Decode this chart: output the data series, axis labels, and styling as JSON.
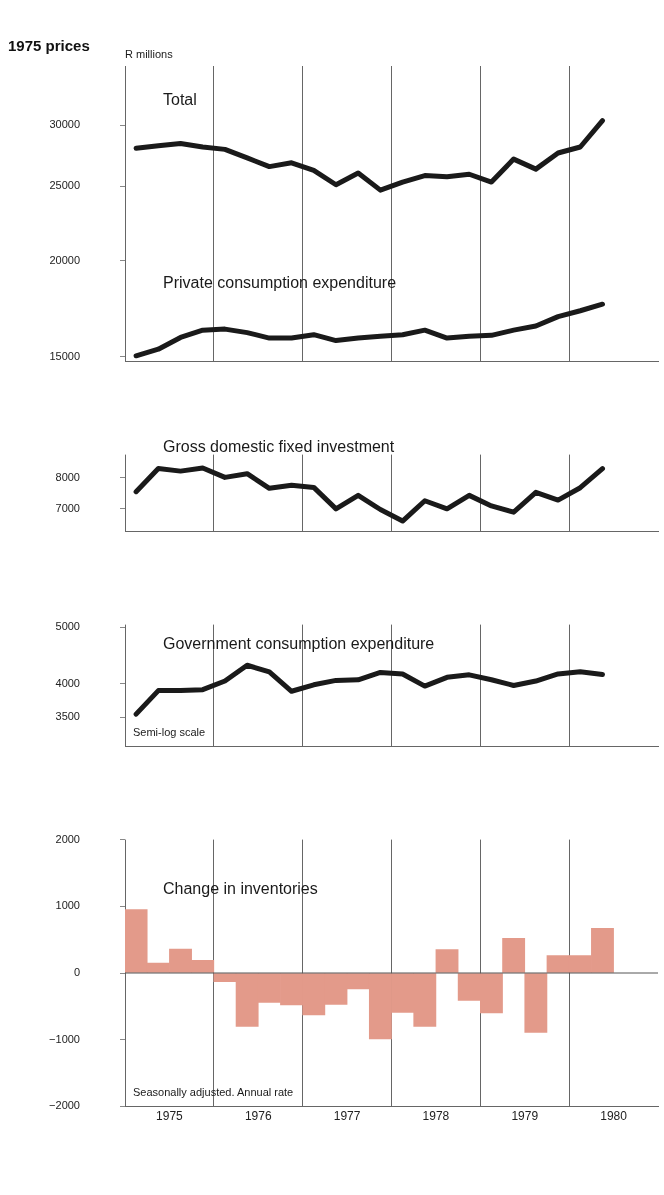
{
  "chart_data": [
    {
      "type": "line",
      "title": "1975 prices",
      "ylabel": "R millions",
      "log": true,
      "grid": "x",
      "tick_labels": "y",
      "x": [
        1975.125,
        1975.375,
        1975.625,
        1975.875,
        1976.125,
        1976.375,
        1976.625,
        1976.875,
        1977.125,
        1977.375,
        1977.625,
        1977.875,
        1978.125,
        1978.375,
        1978.625,
        1978.875,
        1979.125,
        1979.375,
        1979.625,
        1979.875,
        1980.125,
        1980.375
      ],
      "xlim": [
        1975,
        1981
      ],
      "xticks": [
        {
          "value": 1975,
          "label": null
        },
        {
          "value": 1976,
          "label": null
        },
        {
          "value": 1977,
          "label": null
        },
        {
          "value": 1978,
          "label": null
        },
        {
          "value": 1979,
          "label": null
        },
        {
          "value": 1980,
          "label": null
        }
      ],
      "ylim": [
        14800,
        35800
      ],
      "yticks": [
        15000,
        20000,
        25000,
        30000
      ],
      "series": [
        {
          "name": "Total",
          "color": "#1a1a1a",
          "values": [
            28000,
            28200,
            28400,
            28100,
            27900,
            27200,
            26500,
            26800,
            26200,
            25100,
            26000,
            24700,
            25300,
            25800,
            25700,
            25900,
            25300,
            27100,
            26300,
            27600,
            28100,
            30400
          ]
        },
        {
          "name": "Private consumption expenditure",
          "color": "#1a1a1a",
          "values": [
            15050,
            15350,
            15900,
            16250,
            16300,
            16130,
            15870,
            15870,
            16030,
            15750,
            15870,
            15960,
            16030,
            16250,
            15870,
            15960,
            16000,
            16250,
            16450,
            16920,
            17220,
            17560
          ]
        }
      ]
    },
    {
      "type": "line",
      "log": true,
      "grid": "x",
      "tick_labels": "y",
      "x": [
        1975.125,
        1975.375,
        1975.625,
        1975.875,
        1976.125,
        1976.375,
        1976.625,
        1976.875,
        1977.125,
        1977.375,
        1977.625,
        1977.875,
        1978.125,
        1978.375,
        1978.625,
        1978.875,
        1979.125,
        1979.375,
        1979.625,
        1979.875,
        1980.125,
        1980.375
      ],
      "xlim": [
        1975,
        1981
      ],
      "xticks": [
        {
          "value": 1975,
          "label": null
        },
        {
          "value": 1976,
          "label": null
        },
        {
          "value": 1977,
          "label": null
        },
        {
          "value": 1978,
          "label": null
        },
        {
          "value": 1979,
          "label": null
        },
        {
          "value": 1980,
          "label": null
        }
      ],
      "ylim": [
        6350,
        8850
      ],
      "yticks": [
        7000,
        8000
      ],
      "series": [
        {
          "name": "Gross domestic fixed investment",
          "color": "#1a1a1a",
          "values": [
            7540,
            8330,
            8240,
            8350,
            8020,
            8150,
            7650,
            7750,
            7680,
            7000,
            7420,
            6980,
            6640,
            7250,
            7000,
            7420,
            7090,
            6900,
            7520,
            7270,
            7670,
            8330
          ]
        }
      ]
    },
    {
      "type": "line",
      "log": true,
      "grid": "x",
      "tick_labels": "y",
      "annotations": [
        "Semi-log scale"
      ],
      "x": [
        1975.125,
        1975.375,
        1975.625,
        1975.875,
        1976.125,
        1976.375,
        1976.625,
        1976.875,
        1977.125,
        1977.375,
        1977.625,
        1977.875,
        1978.125,
        1978.375,
        1978.625,
        1978.875,
        1979.125,
        1979.375,
        1979.625,
        1979.875,
        1980.125,
        1980.375
      ],
      "xlim": [
        1975,
        1981
      ],
      "xticks": [
        {
          "value": 1975,
          "label": null
        },
        {
          "value": 1976,
          "label": null
        },
        {
          "value": 1977,
          "label": null
        },
        {
          "value": 1978,
          "label": null
        },
        {
          "value": 1979,
          "label": null
        },
        {
          "value": 1980,
          "label": null
        }
      ],
      "ylim": [
        3120,
        5050
      ],
      "yticks": [
        3500,
        4000,
        5000
      ],
      "series": [
        {
          "name": "Government consumption expenditure",
          "color": "#1a1a1a",
          "values": [
            3545,
            3890,
            3890,
            3905,
            4040,
            4300,
            4190,
            3880,
            3980,
            4050,
            4060,
            4180,
            4155,
            3960,
            4100,
            4140,
            4060,
            3970,
            4040,
            4155,
            4190,
            4145
          ]
        }
      ]
    },
    {
      "type": "bar",
      "grid": "x",
      "annotations": [
        "Seasonally adjusted. Annual rate"
      ],
      "x": [
        1975.125,
        1975.375,
        1975.625,
        1975.875,
        1976.125,
        1976.375,
        1976.625,
        1976.875,
        1977.125,
        1977.375,
        1977.625,
        1977.875,
        1978.125,
        1978.375,
        1978.625,
        1978.875,
        1979.125,
        1979.375,
        1979.625,
        1979.875,
        1980.125,
        1980.375
      ],
      "xlim": [
        1975,
        1981
      ],
      "xticks": [
        {
          "value": 1975,
          "label": null
        },
        {
          "value": 1975.5,
          "label": "1975"
        },
        {
          "value": 1976,
          "label": null
        },
        {
          "value": 1976.5,
          "label": "1976"
        },
        {
          "value": 1977,
          "label": null
        },
        {
          "value": 1977.5,
          "label": "1977"
        },
        {
          "value": 1978,
          "label": null
        },
        {
          "value": 1978.5,
          "label": "1978"
        },
        {
          "value": 1979,
          "label": null
        },
        {
          "value": 1979.5,
          "label": "1979"
        },
        {
          "value": 1980,
          "label": null
        },
        {
          "value": 1980.5,
          "label": "1980"
        }
      ],
      "ylim": [
        -2000,
        2000
      ],
      "yticks": [
        {
          "value": -2000,
          "label": "−2000"
        },
        {
          "value": -1000,
          "label": "−1000"
        },
        0,
        1000,
        2000
      ],
      "ref_lines": [
        {
          "axis": "y",
          "value": 0,
          "color": "#555555"
        }
      ],
      "series": [
        {
          "name": "Change in inventories",
          "color": "#e39a8a",
          "values": [
            950,
            150,
            360,
            190,
            -130,
            -800,
            -440,
            -480,
            -630,
            -470,
            -240,
            -990,
            -590,
            -800,
            350,
            -410,
            -600,
            520,
            -890,
            260,
            260,
            670
          ]
        }
      ]
    }
  ]
}
